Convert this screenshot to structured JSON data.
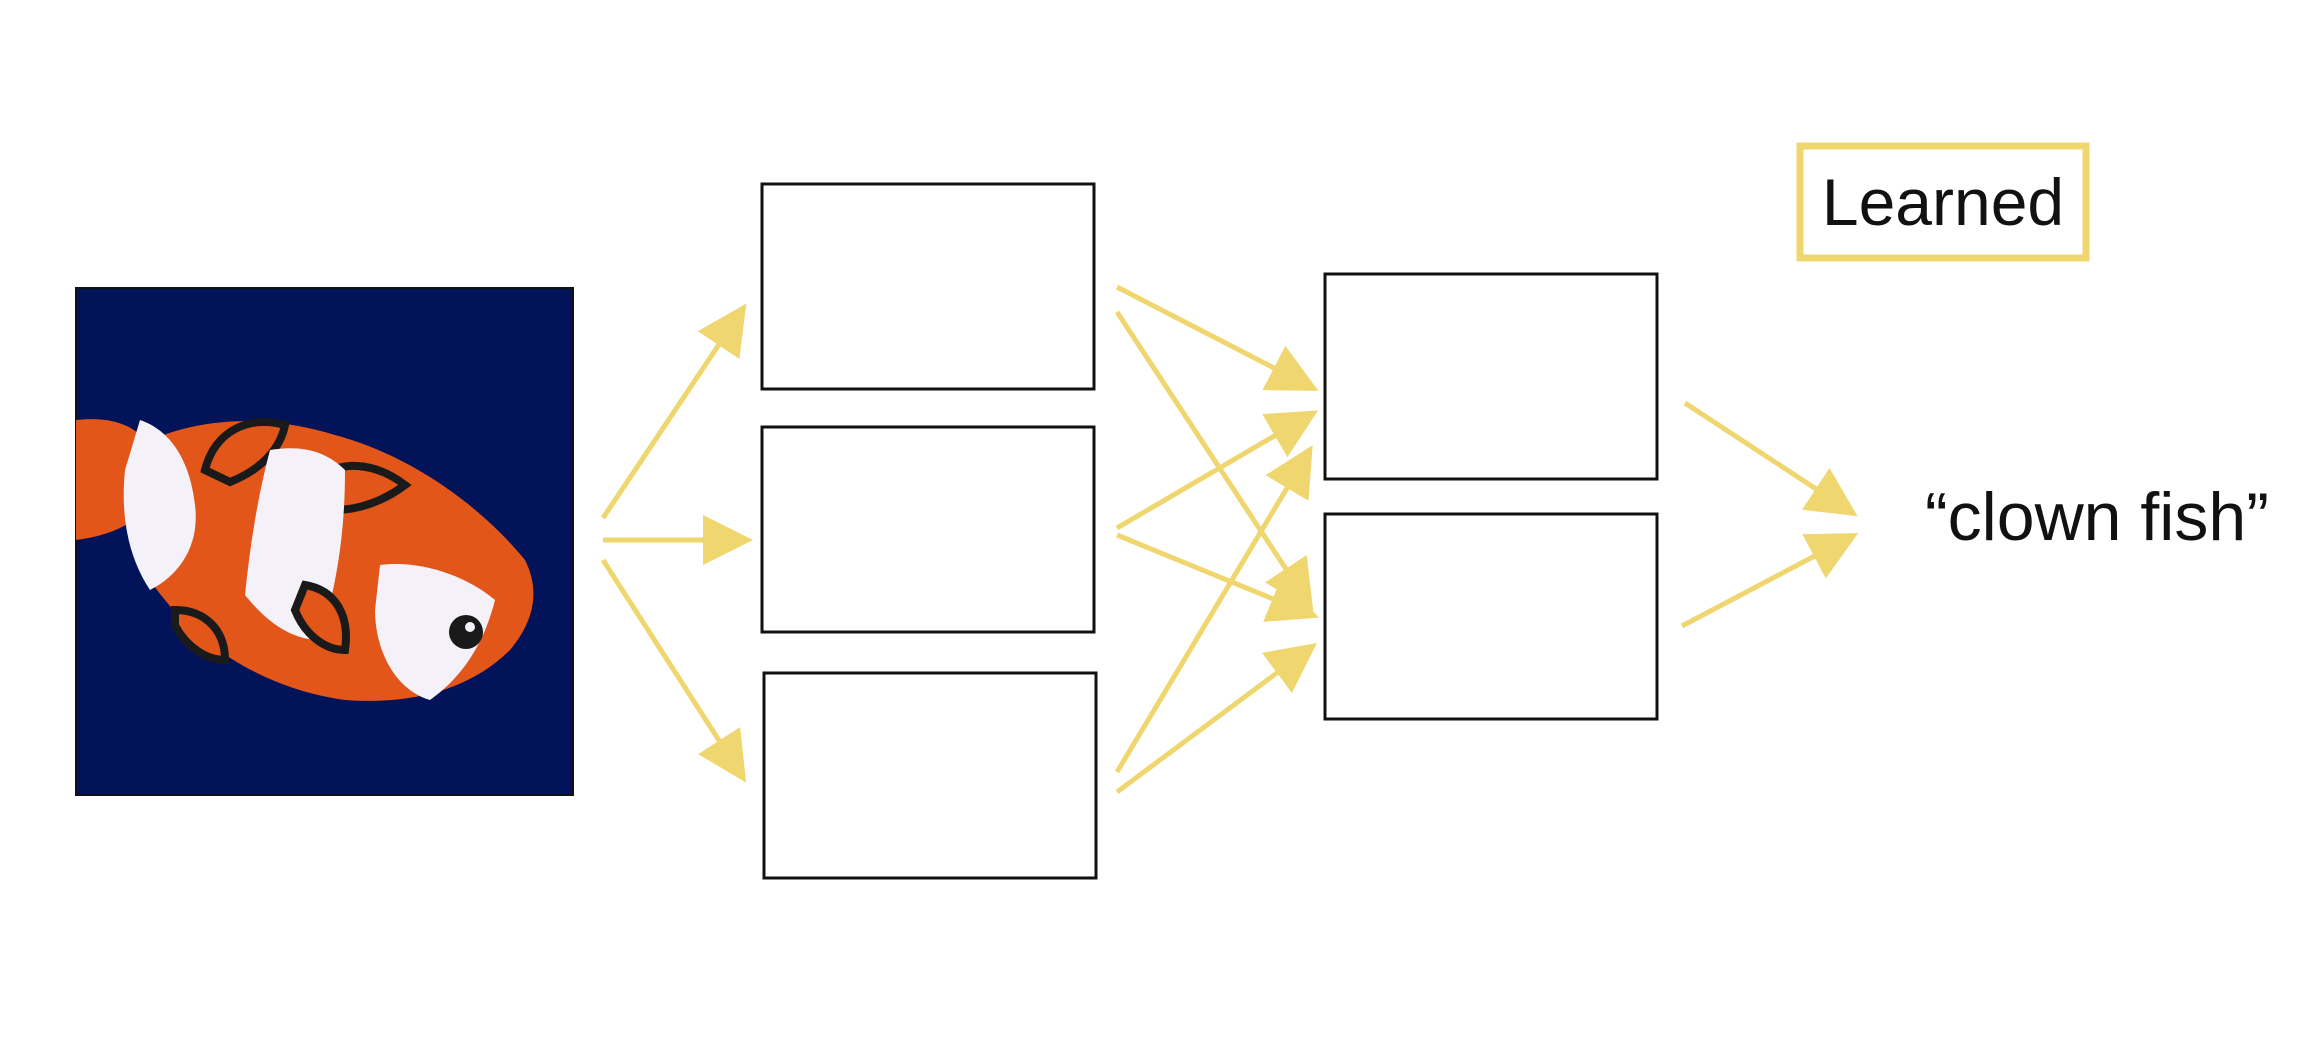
{
  "legend": {
    "label": "Learned",
    "color": "#F0D66E"
  },
  "input": {
    "image": "clownfish-photo",
    "background_color": "#03135A"
  },
  "layers": [
    {
      "name": "layer-1",
      "boxes": 3
    },
    {
      "name": "layer-2",
      "boxes": 2
    }
  ],
  "output": {
    "label": "“clown fish”"
  },
  "colors": {
    "arrow": "#F0D66E",
    "box_stroke": "#111111",
    "fish_orange": "#E2561A",
    "fish_white": "#F4F2F8",
    "fish_black": "#1A1A1A"
  }
}
